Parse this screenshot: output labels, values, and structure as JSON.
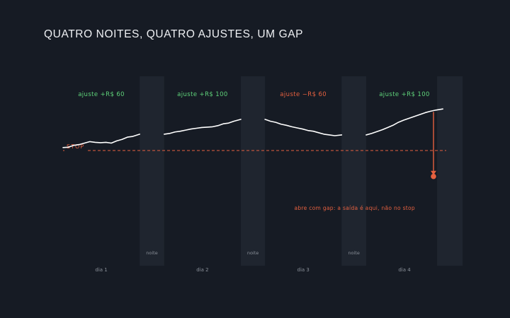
{
  "title": "QUATRO NOITES, QUATRO AJUSTES, UM GAP",
  "colors": {
    "background": "#161b24",
    "night_band": "#1f252f",
    "price_line": "#ffffff",
    "gain": "#5fd37a",
    "loss": "#e5603f",
    "day_label": "#8a9099",
    "night_label": "#8a9099"
  },
  "chart_data": {
    "type": "line",
    "title": "QUATRO NOITES, QUATRO AJUSTES, UM GAP",
    "xlabel": "",
    "ylabel": "",
    "grid": false,
    "legend": "none",
    "x": {
      "min": 0,
      "max": 100
    },
    "ylim": [
      0,
      100
    ],
    "categories": [
      "dia 1",
      "noite",
      "dia 2",
      "noite",
      "dia 3",
      "noite",
      "dia 4"
    ],
    "days": [
      {
        "label": "dia 1",
        "start": 0,
        "end": 20
      },
      {
        "label": "dia 2",
        "start": 26.4,
        "end": 46.4
      },
      {
        "label": "dia 3",
        "start": 52.7,
        "end": 72.7
      },
      {
        "label": "dia 4",
        "start": 79.1,
        "end": 99.1
      }
    ],
    "nights": [
      {
        "label": "noite",
        "start": 20,
        "end": 26.4
      },
      {
        "label": "noite",
        "start": 46.4,
        "end": 52.7
      },
      {
        "label": "noite",
        "start": 72.7,
        "end": 79.1
      },
      {
        "label": "",
        "start": 99.1,
        "end": 100
      }
    ],
    "series": [
      {
        "values": [
          [
            0,
            44
          ],
          [
            1.4,
            44.5
          ],
          [
            2.8,
            47
          ],
          [
            4.2,
            48
          ],
          [
            5.6,
            50
          ],
          [
            7,
            52
          ],
          [
            8.4,
            51
          ],
          [
            9.8,
            50.5
          ],
          [
            11.2,
            51
          ],
          [
            12.6,
            50
          ],
          [
            14,
            53
          ],
          [
            15.4,
            55
          ],
          [
            16.8,
            58
          ],
          [
            18.2,
            59
          ],
          [
            20,
            62
          ]
        ]
      },
      {
        "values": [
          [
            26.4,
            62
          ],
          [
            27.8,
            63
          ],
          [
            29.2,
            65
          ],
          [
            30.6,
            66
          ],
          [
            32,
            67.5
          ],
          [
            33.4,
            69
          ],
          [
            34.8,
            70
          ],
          [
            36.2,
            71
          ],
          [
            37.6,
            71.5
          ],
          [
            39,
            72
          ],
          [
            40.4,
            73.5
          ],
          [
            41.8,
            76
          ],
          [
            43.2,
            77
          ],
          [
            44.6,
            79.5
          ],
          [
            46.4,
            82
          ]
        ]
      },
      {
        "values": [
          [
            52.7,
            82
          ],
          [
            54.1,
            79.5
          ],
          [
            55.5,
            78
          ],
          [
            56.9,
            75.5
          ],
          [
            58.3,
            74
          ],
          [
            59.7,
            72
          ],
          [
            61.1,
            70.5
          ],
          [
            62.5,
            69
          ],
          [
            63.9,
            67
          ],
          [
            65.3,
            66
          ],
          [
            66.7,
            64
          ],
          [
            68.1,
            62
          ],
          [
            69.5,
            61
          ],
          [
            70.9,
            60
          ],
          [
            72.7,
            61
          ]
        ]
      },
      {
        "values": [
          [
            79.1,
            61
          ],
          [
            80.5,
            63
          ],
          [
            81.9,
            65.5
          ],
          [
            83.3,
            68
          ],
          [
            84.7,
            71
          ],
          [
            86.1,
            74
          ],
          [
            87.5,
            78
          ],
          [
            88.9,
            81
          ],
          [
            90.3,
            83.5
          ],
          [
            91.7,
            86
          ],
          [
            93.1,
            88.5
          ],
          [
            94.5,
            91
          ],
          [
            95.9,
            93
          ],
          [
            97.3,
            94.5
          ],
          [
            99.1,
            96
          ]
        ]
      }
    ],
    "adjustments": [
      {
        "label": "ajuste +R$ 60",
        "day": 1,
        "direction": "gain"
      },
      {
        "label": "ajuste +R$ 100",
        "day": 2,
        "direction": "gain"
      },
      {
        "label": "ajuste −R$ 60",
        "day": 3,
        "direction": "loss"
      },
      {
        "label": "ajuste +R$ 100",
        "day": 4,
        "direction": "gain"
      }
    ],
    "stop": {
      "label": "STOP",
      "y": 40
    },
    "gap": {
      "from_y": 92,
      "to_y": 6,
      "label": "abre com gap: a saída é aqui, não no stop"
    }
  }
}
